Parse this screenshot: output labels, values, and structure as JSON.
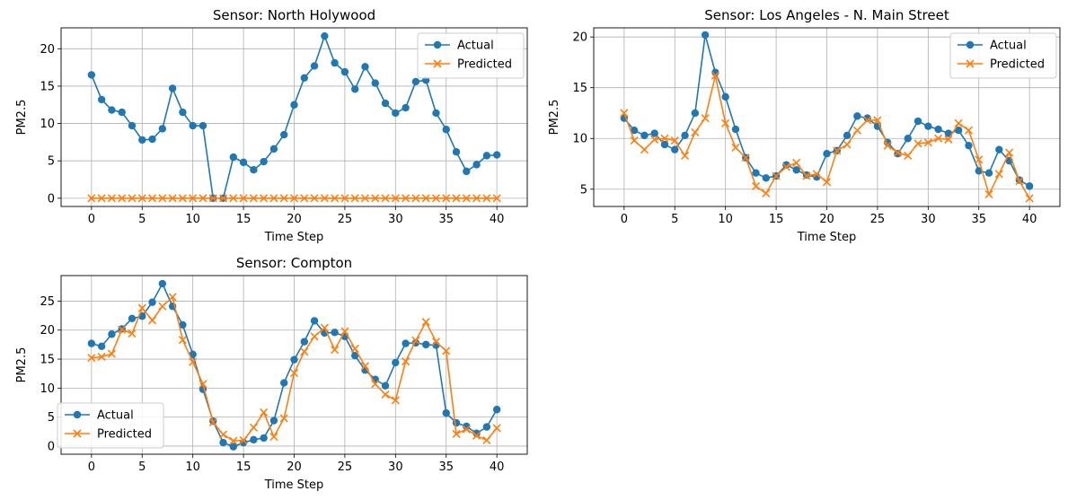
{
  "chart_data": [
    {
      "type": "line",
      "title": "Sensor: North Holywood",
      "xlabel": "Time Step",
      "ylabel": "PM2.5",
      "xlim": [
        -3,
        43
      ],
      "ylim": [
        -1.1,
        22.8
      ],
      "xticks": [
        0,
        5,
        10,
        15,
        20,
        25,
        30,
        35,
        40
      ],
      "yticks": [
        0,
        5,
        10,
        15,
        20
      ],
      "grid": true,
      "legend": "upper right",
      "x": [
        0,
        1,
        2,
        3,
        4,
        5,
        6,
        7,
        8,
        9,
        10,
        11,
        12,
        13,
        14,
        15,
        16,
        17,
        18,
        19,
        20,
        21,
        22,
        23,
        24,
        25,
        26,
        27,
        28,
        29,
        30,
        31,
        32,
        33,
        34,
        35,
        36,
        37,
        38,
        39,
        40
      ],
      "series": [
        {
          "name": "Actual",
          "color": "#1f77b4",
          "marker": "circle",
          "values": [
            16.5,
            13.2,
            11.8,
            11.5,
            9.7,
            7.8,
            7.9,
            9.3,
            14.7,
            11.5,
            9.7,
            9.7,
            0.0,
            0.0,
            5.5,
            4.8,
            3.8,
            4.9,
            6.6,
            8.5,
            12.5,
            16.1,
            17.7,
            21.7,
            18.1,
            16.9,
            14.6,
            17.6,
            15.4,
            12.7,
            11.4,
            12.1,
            15.6,
            15.8,
            11.4,
            9.2,
            6.2,
            3.6,
            4.5,
            5.7,
            5.8
          ]
        },
        {
          "name": "Predicted",
          "color": "#ff7f0e",
          "marker": "x",
          "values": [
            0,
            0,
            0,
            0,
            0,
            0,
            0,
            0,
            0,
            0,
            0,
            0,
            0,
            0,
            0,
            0,
            0,
            0,
            0,
            0,
            0,
            0,
            0,
            0,
            0,
            0,
            0,
            0,
            0,
            0,
            0,
            0,
            0,
            0,
            0,
            0,
            0,
            0,
            0,
            0,
            0
          ]
        }
      ]
    },
    {
      "type": "line",
      "title": "Sensor: Los Angeles - N. Main Street",
      "xlabel": "Time Step",
      "ylabel": "PM2.5",
      "xlim": [
        -3,
        43
      ],
      "ylim": [
        3.3,
        20.9
      ],
      "xticks": [
        0,
        5,
        10,
        15,
        20,
        25,
        30,
        35,
        40
      ],
      "yticks": [
        5,
        10,
        15,
        20
      ],
      "grid": true,
      "legend": "upper right",
      "x": [
        0,
        1,
        2,
        3,
        4,
        5,
        6,
        7,
        8,
        9,
        10,
        11,
        12,
        13,
        14,
        15,
        16,
        17,
        18,
        19,
        20,
        21,
        22,
        23,
        24,
        25,
        26,
        27,
        28,
        29,
        30,
        31,
        32,
        33,
        34,
        35,
        36,
        37,
        38,
        39,
        40
      ],
      "series": [
        {
          "name": "Actual",
          "color": "#1f77b4",
          "marker": "circle",
          "values": [
            12.0,
            10.8,
            10.3,
            10.5,
            9.4,
            8.9,
            10.3,
            12.5,
            20.2,
            16.5,
            14.1,
            10.9,
            8.1,
            6.6,
            6.1,
            6.3,
            7.4,
            6.9,
            6.4,
            6.2,
            8.5,
            8.8,
            10.3,
            12.2,
            12.0,
            11.2,
            9.6,
            8.5,
            10.0,
            11.7,
            11.2,
            10.9,
            10.5,
            10.8,
            9.3,
            6.8,
            6.6,
            8.9,
            7.8,
            5.9,
            5.3
          ]
        },
        {
          "name": "Predicted",
          "color": "#ff7f0e",
          "marker": "x",
          "values": [
            12.5,
            9.8,
            8.9,
            9.9,
            10.0,
            9.8,
            8.3,
            10.6,
            12.0,
            16.2,
            11.5,
            9.1,
            8.1,
            5.3,
            4.6,
            6.3,
            7.2,
            7.6,
            6.3,
            6.5,
            5.7,
            8.8,
            9.4,
            10.8,
            11.8,
            11.8,
            9.3,
            8.6,
            8.3,
            9.5,
            9.6,
            10.0,
            9.9,
            11.5,
            10.8,
            7.9,
            4.5,
            6.5,
            8.6,
            5.8,
            4.1
          ]
        }
      ]
    },
    {
      "type": "line",
      "title": "Sensor: Compton",
      "xlabel": "Time Step",
      "ylabel": "PM2.5",
      "xlim": [
        -3,
        43
      ],
      "ylim": [
        -1.4,
        29.4
      ],
      "xticks": [
        0,
        5,
        10,
        15,
        20,
        25,
        30,
        35,
        40
      ],
      "yticks": [
        0,
        5,
        10,
        15,
        20,
        25
      ],
      "grid": true,
      "legend": "lower left",
      "x": [
        0,
        1,
        2,
        3,
        4,
        5,
        6,
        7,
        8,
        9,
        10,
        11,
        12,
        13,
        14,
        15,
        16,
        17,
        18,
        19,
        20,
        21,
        22,
        23,
        24,
        25,
        26,
        27,
        28,
        29,
        30,
        31,
        32,
        33,
        34,
        35,
        36,
        37,
        38,
        39,
        40
      ],
      "series": [
        {
          "name": "Actual",
          "color": "#1f77b4",
          "marker": "circle",
          "values": [
            17.7,
            17.2,
            19.3,
            20.2,
            22.0,
            22.4,
            24.8,
            28.0,
            24.1,
            20.9,
            15.8,
            9.8,
            4.3,
            0.6,
            -0.1,
            0.6,
            1.1,
            1.4,
            4.4,
            10.9,
            14.9,
            18.0,
            21.6,
            19.5,
            19.6,
            18.9,
            15.6,
            13.1,
            11.5,
            10.4,
            14.4,
            17.7,
            17.8,
            17.5,
            17.4,
            5.7,
            4.0,
            3.4,
            2.2,
            3.3,
            6.3
          ]
        },
        {
          "name": "Predicted",
          "color": "#ff7f0e",
          "marker": "x",
          "values": [
            15.2,
            15.4,
            15.9,
            20.1,
            19.4,
            23.8,
            21.7,
            24.1,
            25.7,
            18.3,
            14.5,
            10.7,
            4.1,
            2.0,
            0.9,
            1.0,
            3.2,
            5.8,
            1.6,
            4.8,
            12.6,
            16.3,
            18.9,
            20.4,
            16.6,
            19.8,
            16.8,
            13.8,
            10.7,
            8.9,
            7.9,
            14.6,
            18.2,
            21.4,
            18.0,
            16.4,
            2.1,
            2.9,
            1.8,
            1.0,
            3.1
          ]
        }
      ]
    }
  ]
}
